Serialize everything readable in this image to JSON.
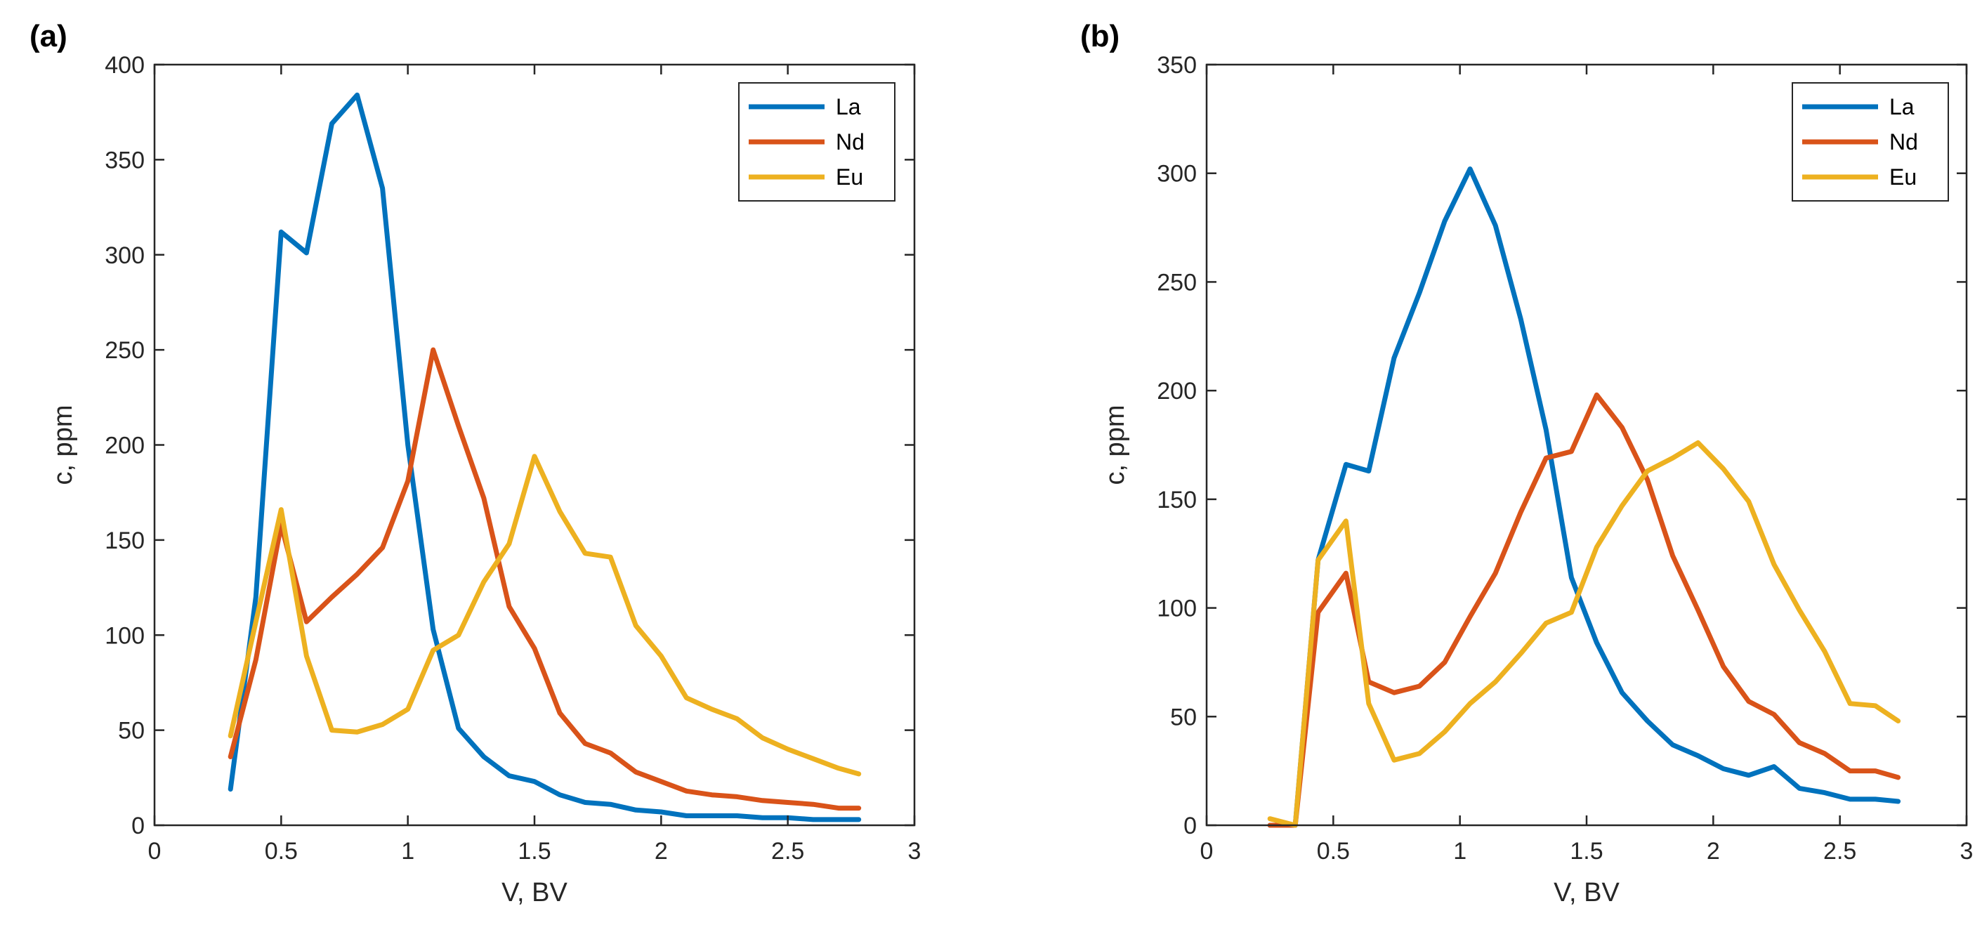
{
  "colors": {
    "La": "#0072BD",
    "Nd": "#D95319",
    "Eu": "#EDB120",
    "axis": "#262626"
  },
  "chart_data": [
    {
      "panel": "(a)",
      "type": "line",
      "xlabel": "V, BV",
      "ylabel": "c, ppm",
      "xlim": [
        0,
        3
      ],
      "ylim": [
        0,
        400
      ],
      "xticks": [
        0,
        0.5,
        1,
        1.5,
        2,
        2.5,
        3
      ],
      "xtick_labels": [
        "0",
        "0.5",
        "1",
        "1.5",
        "2",
        "2.5",
        "3"
      ],
      "yticks": [
        0,
        50,
        100,
        150,
        200,
        250,
        300,
        350,
        400
      ],
      "ytick_labels": [
        "0",
        "50",
        "100",
        "150",
        "200",
        "250",
        "300",
        "350",
        "400"
      ],
      "legend": "top-right",
      "series": [
        {
          "name": "La",
          "x": [
            0.3,
            0.4,
            0.5,
            0.6,
            0.7,
            0.8,
            0.9,
            1.0,
            1.1,
            1.2,
            1.3,
            1.4,
            1.5,
            1.6,
            1.7,
            1.8,
            1.9,
            2.0,
            2.1,
            2.2,
            2.3,
            2.4,
            2.5,
            2.6,
            2.7,
            2.78
          ],
          "y": [
            19,
            120,
            312,
            301,
            369,
            384,
            335,
            200,
            103,
            51,
            36,
            26,
            23,
            16,
            12,
            11,
            8,
            7,
            5,
            5,
            5,
            4,
            4,
            3,
            3,
            3
          ]
        },
        {
          "name": "Nd",
          "x": [
            0.3,
            0.4,
            0.5,
            0.6,
            0.7,
            0.8,
            0.9,
            1.0,
            1.1,
            1.2,
            1.3,
            1.4,
            1.5,
            1.6,
            1.7,
            1.8,
            1.9,
            2.0,
            2.1,
            2.2,
            2.3,
            2.4,
            2.5,
            2.6,
            2.7,
            2.78
          ],
          "y": [
            36,
            87,
            158,
            107,
            120,
            132,
            146,
            181,
            250,
            210,
            172,
            115,
            93,
            59,
            43,
            38,
            28,
            23,
            18,
            16,
            15,
            13,
            12,
            11,
            9,
            9
          ]
        },
        {
          "name": "Eu",
          "x": [
            0.3,
            0.4,
            0.5,
            0.6,
            0.7,
            0.8,
            0.9,
            1.0,
            1.1,
            1.2,
            1.3,
            1.4,
            1.5,
            1.6,
            1.7,
            1.8,
            1.9,
            2.0,
            2.1,
            2.2,
            2.3,
            2.4,
            2.5,
            2.6,
            2.7,
            2.78
          ],
          "y": [
            47,
            107,
            166,
            89,
            50,
            49,
            53,
            61,
            92,
            100,
            128,
            148,
            194,
            165,
            143,
            141,
            105,
            89,
            67,
            61,
            56,
            46,
            40,
            35,
            30,
            27
          ]
        }
      ]
    },
    {
      "panel": "(b)",
      "type": "line",
      "xlabel": "V, BV",
      "ylabel": "c, ppm",
      "xlim": [
        0,
        3
      ],
      "ylim": [
        0,
        350
      ],
      "xticks": [
        0,
        0.5,
        1,
        1.5,
        2,
        2.5,
        3
      ],
      "xtick_labels": [
        "0",
        "0.5",
        "1",
        "1.5",
        "2",
        "2.5",
        "3"
      ],
      "yticks": [
        0,
        50,
        100,
        150,
        200,
        250,
        300,
        350
      ],
      "ytick_labels": [
        "0",
        "50",
        "100",
        "150",
        "200",
        "250",
        "300",
        "350"
      ],
      "legend": "top-right",
      "series": [
        {
          "name": "La",
          "x": [
            0.25,
            0.35,
            0.44,
            0.55,
            0.64,
            0.74,
            0.84,
            0.94,
            1.04,
            1.14,
            1.24,
            1.34,
            1.44,
            1.54,
            1.64,
            1.74,
            1.84,
            1.94,
            2.04,
            2.14,
            2.24,
            2.34,
            2.44,
            2.54,
            2.64,
            2.73
          ],
          "y": [
            0,
            0,
            122,
            166,
            163,
            215,
            245,
            278,
            302,
            276,
            233,
            182,
            114,
            84,
            61,
            48,
            37,
            32,
            26,
            23,
            27,
            17,
            15,
            12,
            12,
            11
          ]
        },
        {
          "name": "Nd",
          "x": [
            0.25,
            0.35,
            0.44,
            0.55,
            0.64,
            0.74,
            0.84,
            0.94,
            1.04,
            1.14,
            1.24,
            1.34,
            1.44,
            1.54,
            1.64,
            1.74,
            1.84,
            1.94,
            2.04,
            2.14,
            2.24,
            2.34,
            2.44,
            2.54,
            2.64,
            2.73
          ],
          "y": [
            0,
            0,
            98,
            116,
            66,
            61,
            64,
            75,
            96,
            116,
            144,
            169,
            172,
            198,
            183,
            159,
            124,
            99,
            73,
            57,
            51,
            38,
            33,
            25,
            25,
            22
          ]
        },
        {
          "name": "Eu",
          "x": [
            0.25,
            0.35,
            0.44,
            0.55,
            0.64,
            0.74,
            0.84,
            0.94,
            1.04,
            1.14,
            1.24,
            1.34,
            1.44,
            1.54,
            1.64,
            1.74,
            1.84,
            1.94,
            2.04,
            2.14,
            2.24,
            2.34,
            2.44,
            2.54,
            2.64,
            2.73
          ],
          "y": [
            3,
            0,
            122,
            140,
            56,
            30,
            33,
            43,
            56,
            66,
            79,
            93,
            98,
            128,
            147,
            163,
            169,
            176,
            164,
            149,
            120,
            99,
            80,
            56,
            55,
            48
          ]
        }
      ]
    }
  ]
}
